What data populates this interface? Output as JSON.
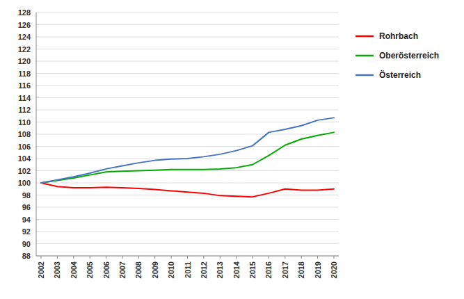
{
  "chart_data": {
    "type": "line",
    "x": [
      2002,
      2003,
      2004,
      2005,
      2006,
      2007,
      2008,
      2009,
      2010,
      2011,
      2012,
      2013,
      2014,
      2015,
      2016,
      2017,
      2018,
      2019,
      2020
    ],
    "series": [
      {
        "name": "Rohrbach",
        "color": "#ff0000",
        "values": [
          100.0,
          99.4,
          99.2,
          99.2,
          99.3,
          99.2,
          99.1,
          98.9,
          98.7,
          98.5,
          98.3,
          97.9,
          97.8,
          97.7,
          98.3,
          99.0,
          98.8,
          98.8,
          99.0
        ]
      },
      {
        "name": "Oberösterreich",
        "color": "#00aa00",
        "values": [
          100.0,
          100.4,
          100.8,
          101.3,
          101.8,
          101.9,
          102.0,
          102.1,
          102.2,
          102.2,
          102.2,
          102.3,
          102.5,
          103.0,
          104.5,
          106.2,
          107.2,
          107.8,
          108.3
        ]
      },
      {
        "name": "Österreich",
        "color": "#4472c4",
        "values": [
          100.0,
          100.5,
          101.0,
          101.6,
          102.3,
          102.8,
          103.3,
          103.7,
          103.9,
          104.0,
          104.3,
          104.7,
          105.3,
          106.1,
          108.3,
          108.8,
          109.4,
          110.3,
          110.7
        ]
      }
    ],
    "xlim": [
      2001.7,
      2020.3
    ],
    "xticks": [
      2002,
      2003,
      2004,
      2005,
      2006,
      2007,
      2008,
      2009,
      2010,
      2011,
      2012,
      2013,
      2014,
      2015,
      2016,
      2017,
      2018,
      2019,
      2020
    ],
    "ylim": [
      88,
      128
    ],
    "yticks": [
      88,
      90,
      92,
      94,
      96,
      98,
      100,
      102,
      104,
      106,
      108,
      110,
      112,
      114,
      116,
      118,
      120,
      122,
      124,
      126,
      128
    ],
    "grid": true,
    "legend": "right"
  }
}
